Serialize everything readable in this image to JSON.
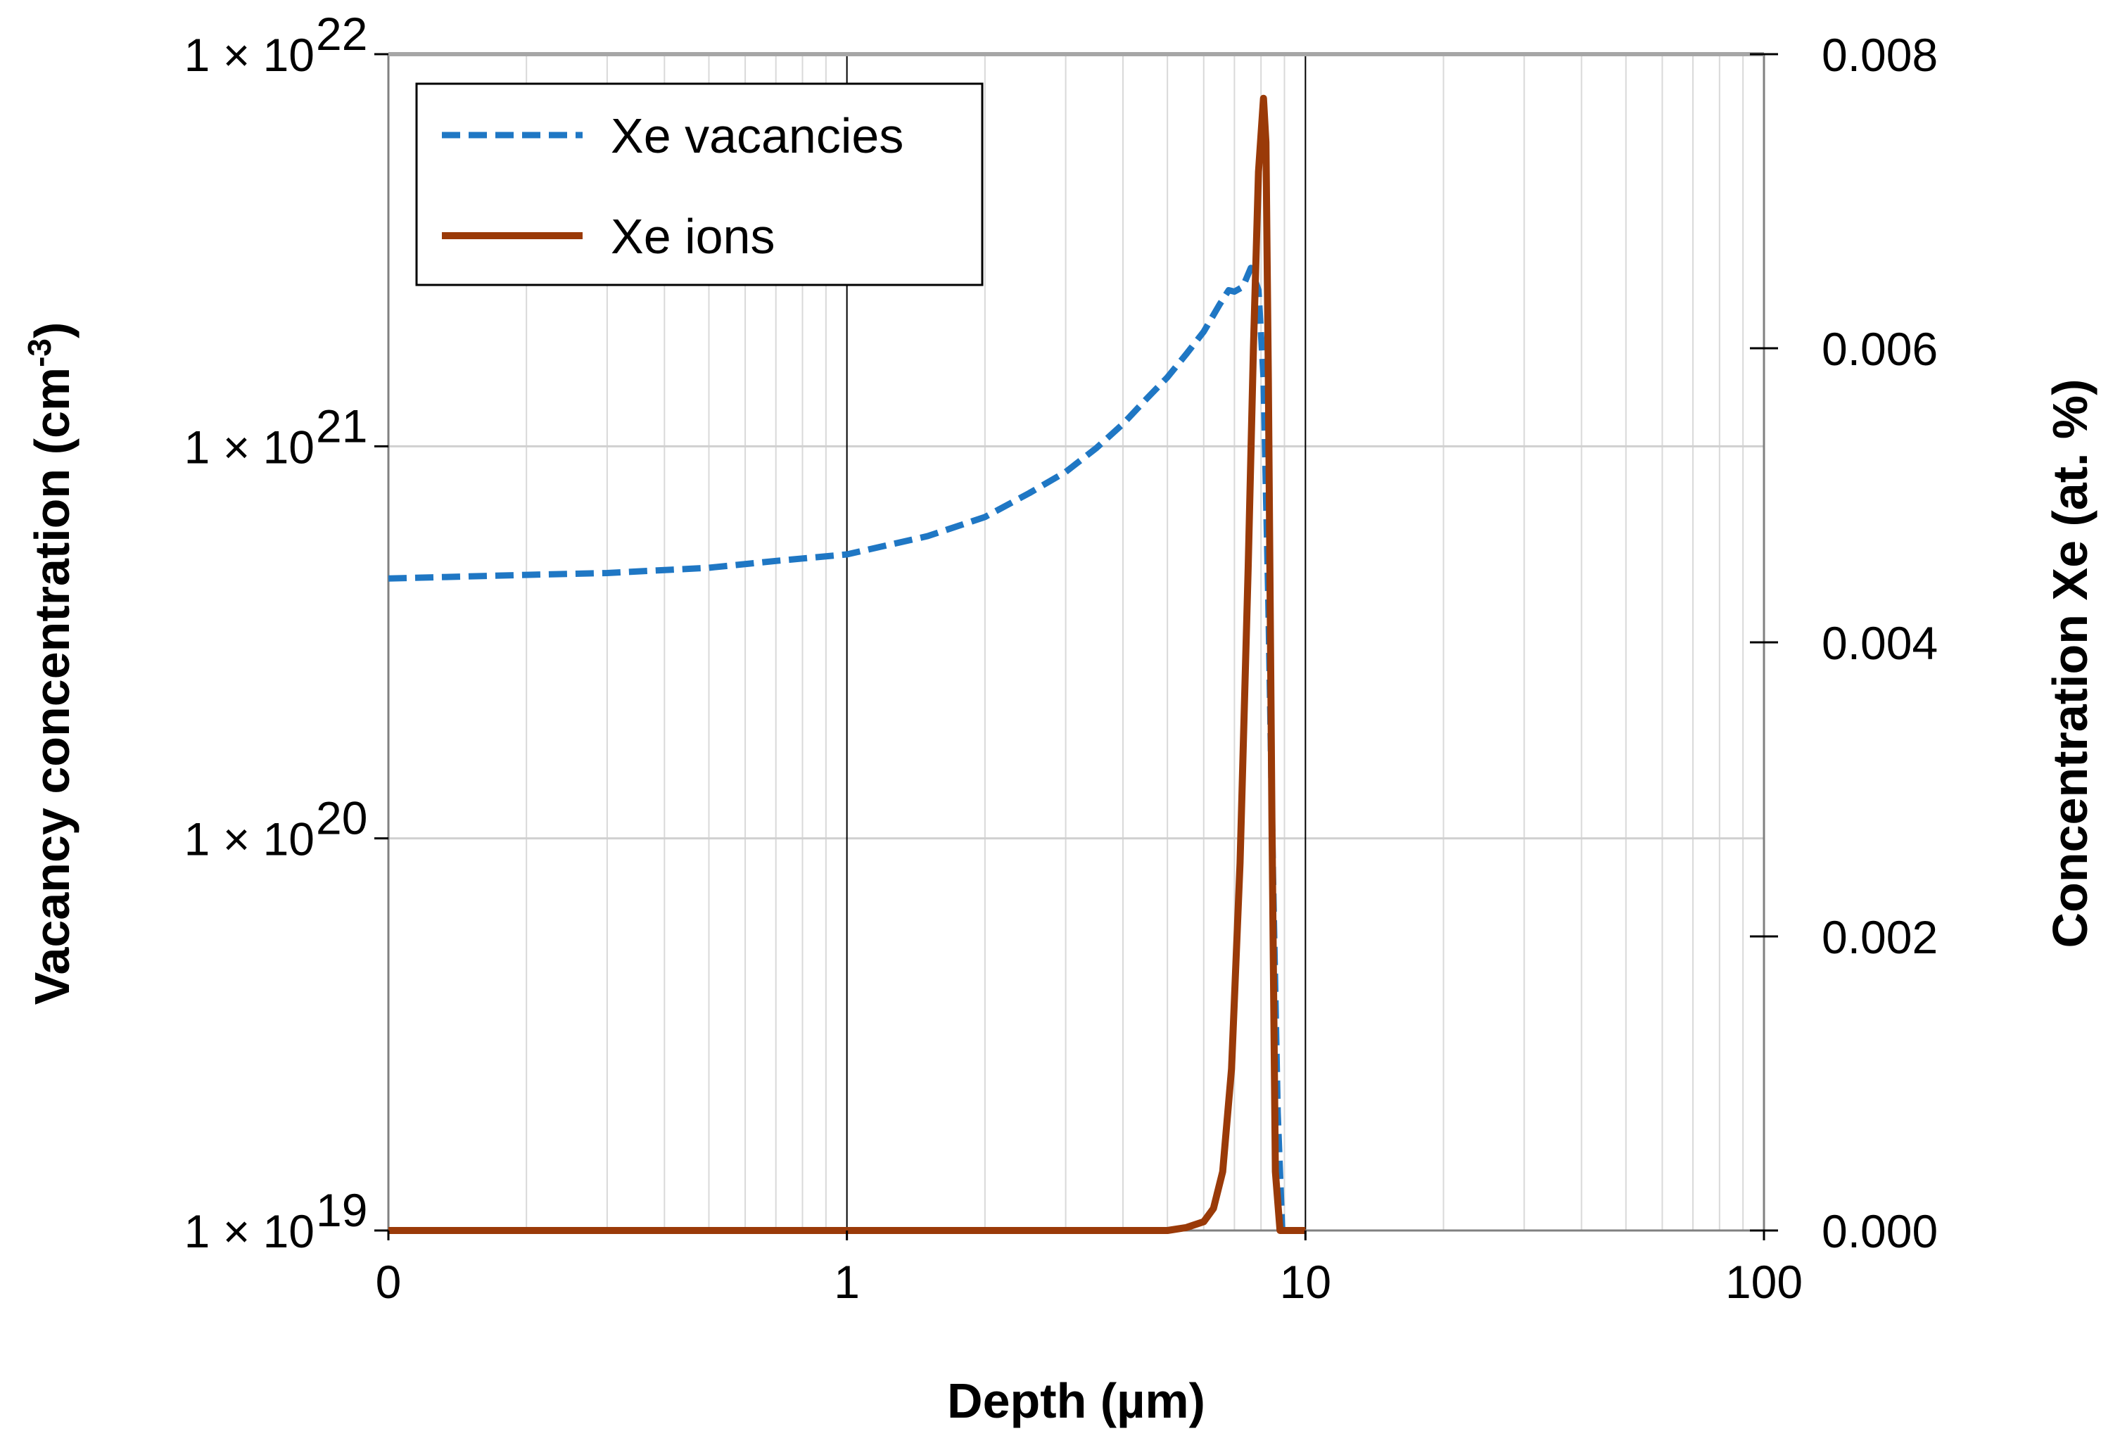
{
  "chart_data": {
    "type": "line",
    "xlabel": "Depth (µm)",
    "xscale": "log",
    "xlim": [
      0.1,
      100
    ],
    "xticks": [
      {
        "value": 0.1,
        "label": "0"
      },
      {
        "value": 1,
        "label": "1"
      },
      {
        "value": 10,
        "label": "10"
      },
      {
        "value": 100,
        "label": "100"
      }
    ],
    "y_left": {
      "label_main": "Vacancy concentration (cm",
      "label_sup": "-3",
      "label_close": ")",
      "scale": "log",
      "lim": [
        1e+19,
        1e+22
      ],
      "ticks": [
        {
          "value": 1e+19,
          "base": "1 × 10",
          "exp": "19"
        },
        {
          "value": 1e+20,
          "base": "1 × 10",
          "exp": "20"
        },
        {
          "value": 1e+21,
          "base": "1 × 10",
          "exp": "21"
        },
        {
          "value": 1e+22,
          "base": "1 × 10",
          "exp": "22"
        }
      ]
    },
    "y_right": {
      "label": "Concentration Xe (at. %)",
      "scale": "linear",
      "lim": [
        0,
        0.008
      ],
      "ticks": [
        {
          "value": 0,
          "label": "0.000"
        },
        {
          "value": 0.002,
          "label": "0.002"
        },
        {
          "value": 0.004,
          "label": "0.004"
        },
        {
          "value": 0.006,
          "label": "0.006"
        },
        {
          "value": 0.008,
          "label": "0.008"
        }
      ]
    },
    "grid": true,
    "legend_position": "top-left",
    "series": [
      {
        "name": "Xe vacancies",
        "axis": "left",
        "style": "dashed",
        "color": "#1f77c4",
        "x": [
          0.1,
          0.2,
          0.3,
          0.5,
          0.7,
          1.0,
          1.5,
          2.0,
          2.5,
          3.0,
          3.5,
          4.0,
          4.5,
          5.0,
          5.5,
          6.0,
          6.5,
          6.8,
          7.0,
          7.3,
          7.6,
          7.9,
          8.1,
          8.3,
          8.5,
          8.7,
          8.9
        ],
        "y": [
          4.6e+20,
          4.7e+20,
          4.75e+20,
          4.9e+20,
          5.1e+20,
          5.3e+20,
          5.9e+20,
          6.6e+20,
          7.6e+20,
          8.6e+20,
          9.9e+20,
          1.14e+21,
          1.32e+21,
          1.5e+21,
          1.72e+21,
          1.96e+21,
          2.3e+21,
          2.5e+21,
          2.48e+21,
          2.55e+21,
          2.85e+21,
          2.5e+21,
          1.5e+21,
          4e+20,
          8e+19,
          2e+19,
          1e+19
        ]
      },
      {
        "name": "Xe ions",
        "axis": "right",
        "style": "solid",
        "color": "#9a3a08",
        "x": [
          0.1,
          1,
          3,
          5,
          5.5,
          6.0,
          6.3,
          6.6,
          6.9,
          7.2,
          7.5,
          7.7,
          7.9,
          8.1,
          8.2,
          8.3,
          8.45,
          8.6,
          8.8,
          9.0,
          10
        ],
        "y": [
          0,
          0,
          0,
          0,
          2e-05,
          6e-05,
          0.00015,
          0.0004,
          0.0011,
          0.0025,
          0.0045,
          0.006,
          0.0072,
          0.0077,
          0.0074,
          0.0058,
          0.0028,
          0.0004,
          0.0,
          0.0,
          0.0
        ]
      }
    ]
  }
}
